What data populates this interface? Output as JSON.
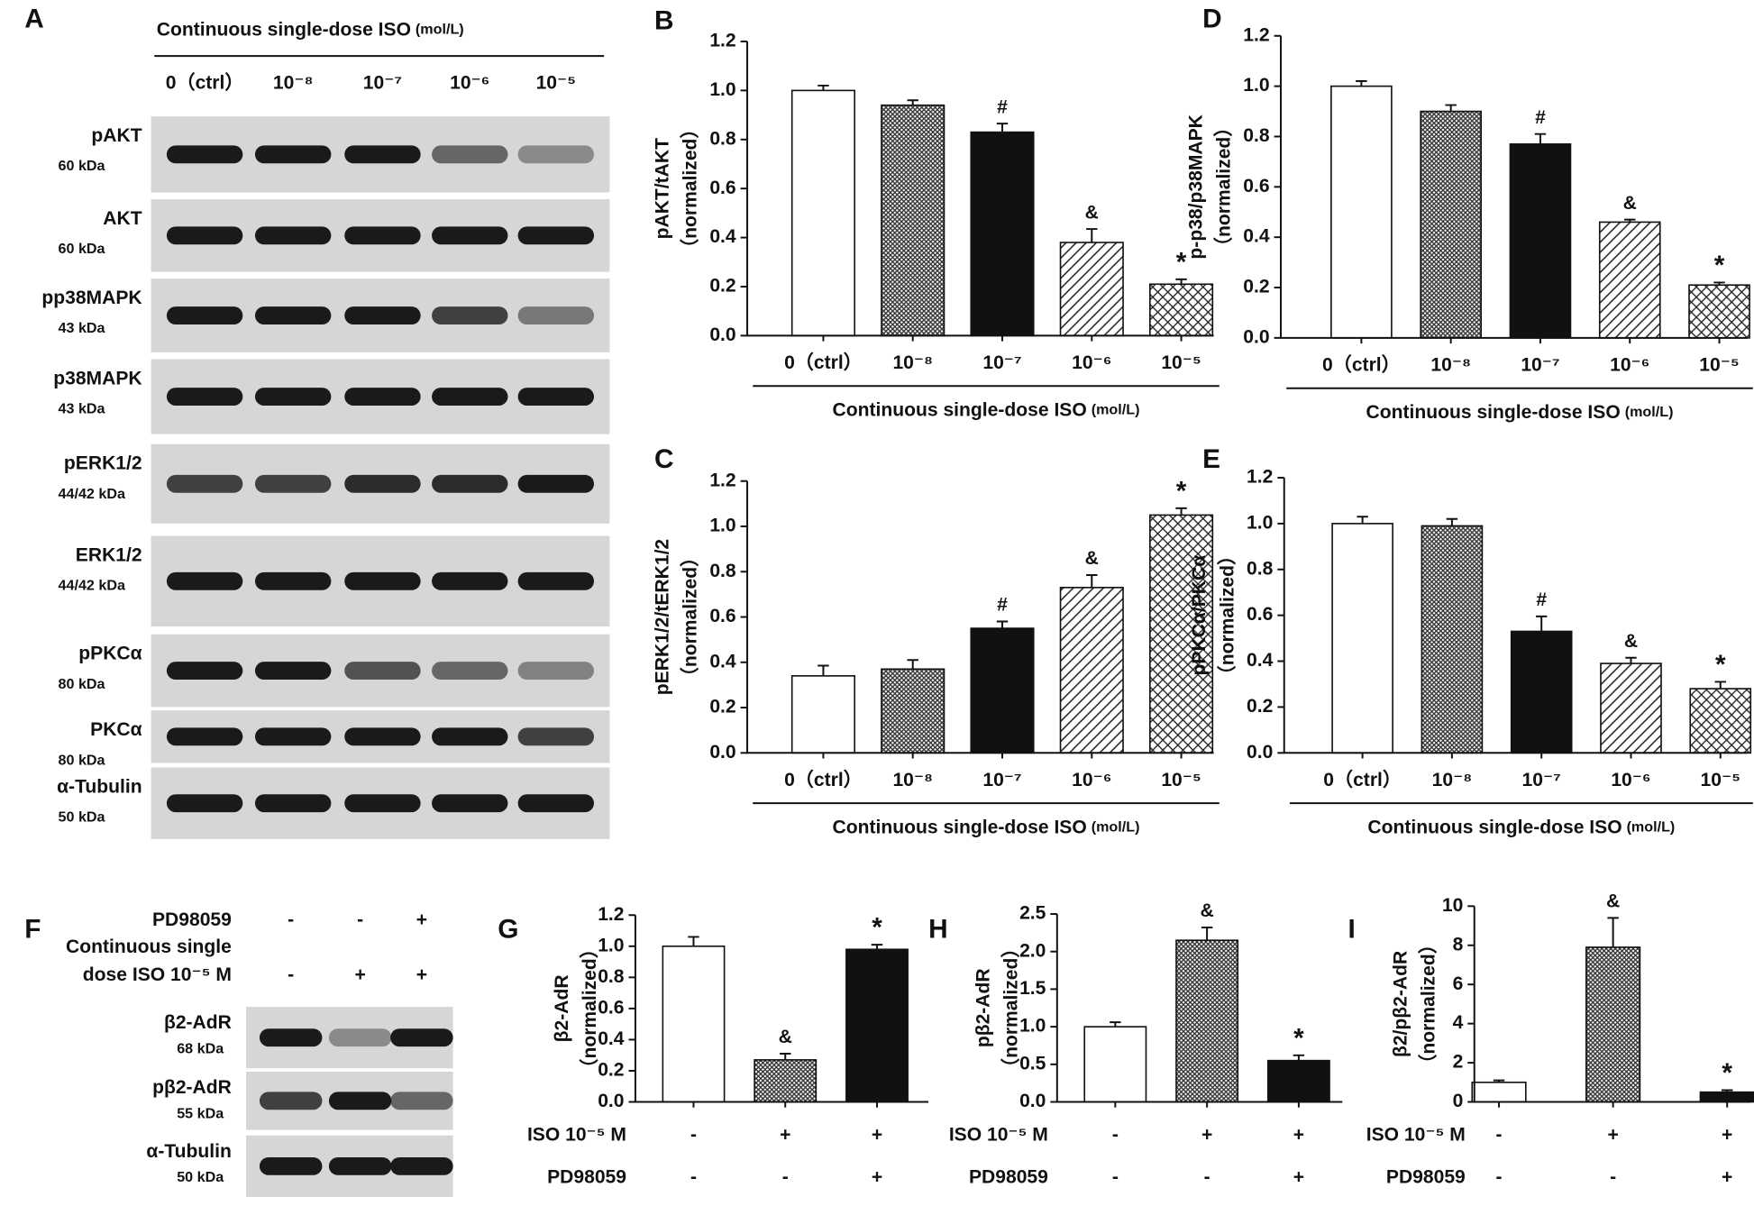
{
  "blots": {
    "A": {
      "panel": "A",
      "title": "Continuous single-dose ISO",
      "title_unit": "(mol/L)",
      "lanes": [
        "0（ctrl）",
        "10⁻⁸",
        "10⁻⁷",
        "10⁻⁶",
        "10⁻⁵"
      ],
      "bands": [
        {
          "name": "pAKT",
          "size": "60 kDa"
        },
        {
          "name": "AKT",
          "size": "60 kDa"
        },
        {
          "name": "pp38MAPK",
          "size": "43 kDa"
        },
        {
          "name": "p38MAPK",
          "size": "43 kDa"
        },
        {
          "name": "pERK1/2",
          "size": "44/42 kDa"
        },
        {
          "name": "ERK1/2",
          "size": "44/42 kDa"
        },
        {
          "name": "pPKCα",
          "size": "80 kDa"
        },
        {
          "name": "PKCα",
          "size": "80 kDa"
        },
        {
          "name": "α-Tubulin",
          "size": "50 kDa"
        }
      ]
    },
    "F": {
      "panel": "F",
      "rows": [
        {
          "label": [
            "PD98059"
          ],
          "signs": [
            "-",
            "-",
            "+"
          ]
        },
        {
          "label": [
            "Continuous single",
            "dose ISO 10⁻⁵ M"
          ],
          "signs": [
            "-",
            "+",
            "+"
          ]
        }
      ],
      "bands": [
        {
          "name": "β2-AdR",
          "size": "68 kDa"
        },
        {
          "name": "pβ2-AdR",
          "size": "55 kDa"
        },
        {
          "name": "α-Tubulin",
          "size": "50 kDa"
        }
      ]
    }
  },
  "chart_data": [
    {
      "type": "bar",
      "panel": "B",
      "ylabel": [
        "pAKT/tAKT",
        "（normalized）"
      ],
      "xlabel": "Continuous single-dose ISO",
      "xlabel_unit": "(mol/L)",
      "categories": [
        "0（ctrl）",
        "10⁻⁸",
        "10⁻⁷",
        "10⁻⁶",
        "10⁻⁵"
      ],
      "values": [
        1.0,
        0.94,
        0.83,
        0.38,
        0.21
      ],
      "errors": [
        0.02,
        0.02,
        0.035,
        0.055,
        0.02
      ],
      "annotations": [
        null,
        null,
        "#",
        "&",
        "*"
      ],
      "fills": [
        "white",
        "dots",
        "black",
        "diagonal",
        "crosshatch"
      ],
      "ylim": [
        0,
        1.2
      ],
      "yticks": [
        {
          "value": 0,
          "label": "0.0"
        },
        0.2,
        0.4,
        0.6,
        0.8,
        {
          "value": 1,
          "label": "1.0"
        },
        1.2
      ]
    },
    {
      "type": "bar",
      "panel": "C",
      "ylabel": [
        "pERK1/2/tERK1/2",
        "（normalized）"
      ],
      "xlabel": "Continuous single-dose ISO",
      "xlabel_unit": "(mol/L)",
      "categories": [
        "0（ctrl）",
        "10⁻⁸",
        "10⁻⁷",
        "10⁻⁶",
        "10⁻⁵"
      ],
      "values": [
        0.34,
        0.37,
        0.55,
        0.73,
        1.05
      ],
      "errors": [
        0.045,
        0.04,
        0.03,
        0.055,
        0.03
      ],
      "annotations": [
        null,
        null,
        "#",
        "&",
        "*"
      ],
      "fills": [
        "white",
        "dots",
        "black",
        "diagonal",
        "crosshatch"
      ],
      "ylim": [
        0,
        1.2
      ],
      "yticks": [
        {
          "value": 0,
          "label": "0.0"
        },
        0.2,
        0.4,
        0.6,
        0.8,
        {
          "value": 1,
          "label": "1.0"
        },
        1.2
      ]
    },
    {
      "type": "bar",
      "panel": "D",
      "ylabel": [
        "p-p38/p38MAPK",
        "（normalized）"
      ],
      "xlabel": "Continuous single-dose ISO",
      "xlabel_unit": "(mol/L)",
      "categories": [
        "0（ctrl）",
        "10⁻⁸",
        "10⁻⁷",
        "10⁻⁶",
        "10⁻⁵"
      ],
      "values": [
        1.0,
        0.9,
        0.77,
        0.46,
        0.21
      ],
      "errors": [
        0.02,
        0.025,
        0.04,
        0.01,
        0.01
      ],
      "annotations": [
        null,
        null,
        "#",
        "&",
        "*"
      ],
      "fills": [
        "white",
        "dots",
        "black",
        "diagonal",
        "crosshatch"
      ],
      "ylim": [
        0,
        1.2
      ],
      "yticks": [
        {
          "value": 0,
          "label": "0.0"
        },
        0.2,
        0.4,
        0.6,
        0.8,
        {
          "value": 1,
          "label": "1.0"
        },
        1.2
      ]
    },
    {
      "type": "bar",
      "panel": "E",
      "ylabel": [
        "pPKCα/PKCα",
        "（normalized）"
      ],
      "xlabel": "Continuous single-dose ISO",
      "xlabel_unit": "(mol/L)",
      "categories": [
        "0（ctrl）",
        "10⁻⁸",
        "10⁻⁷",
        "10⁻⁶",
        "10⁻⁵"
      ],
      "values": [
        1.0,
        0.99,
        0.53,
        0.39,
        0.28
      ],
      "errors": [
        0.03,
        0.03,
        0.065,
        0.025,
        0.03
      ],
      "annotations": [
        null,
        null,
        "#",
        "&",
        "*"
      ],
      "fills": [
        "white",
        "dots",
        "black",
        "diagonal",
        "crosshatch"
      ],
      "ylim": [
        0,
        1.2
      ],
      "yticks": [
        {
          "value": 0,
          "label": "0.0"
        },
        0.2,
        0.4,
        0.6,
        0.8,
        {
          "value": 1,
          "label": "1.0"
        },
        1.2
      ]
    },
    {
      "type": "bar",
      "panel": "G",
      "ylabel": [
        "β2-AdR",
        "（normalized）"
      ],
      "rows": [
        {
          "label": "ISO 10⁻⁵ M",
          "signs": [
            "-",
            "+",
            "+"
          ]
        },
        {
          "label": "PD98059",
          "signs": [
            "-",
            "-",
            "+"
          ]
        }
      ],
      "values": [
        1.0,
        0.27,
        0.98
      ],
      "errors": [
        0.06,
        0.04,
        0.03
      ],
      "annotations": [
        null,
        "&",
        "*"
      ],
      "fills": [
        "white",
        "dots",
        "black"
      ],
      "ylim": [
        0,
        1.2
      ],
      "yticks": [
        {
          "value": 0,
          "label": "0.0"
        },
        0.2,
        0.4,
        0.6,
        0.8,
        {
          "value": 1,
          "label": "1.0"
        },
        1.2
      ]
    },
    {
      "type": "bar",
      "panel": "H",
      "ylabel": [
        "pβ2-AdR",
        "（normalized）"
      ],
      "rows": [
        {
          "label": "ISO 10⁻⁵ M",
          "signs": [
            "-",
            "+",
            "+"
          ]
        },
        {
          "label": "PD98059",
          "signs": [
            "-",
            "-",
            "+"
          ]
        }
      ],
      "values": [
        1.0,
        2.15,
        0.55
      ],
      "errors": [
        0.06,
        0.17,
        0.07
      ],
      "annotations": [
        null,
        "&",
        "*"
      ],
      "fills": [
        "white",
        "dots",
        "black"
      ],
      "ylim": [
        0,
        2.5
      ],
      "yticks": [
        {
          "value": 0,
          "label": "0.0"
        },
        0.5,
        {
          "value": 1,
          "label": "1.0"
        },
        1.5,
        {
          "value": 2,
          "label": "2.0"
        },
        2.5
      ]
    },
    {
      "type": "bar",
      "panel": "I",
      "ylabel": [
        "β2/pβ2-AdR",
        "（normalized）"
      ],
      "rows": [
        {
          "label": "ISO 10⁻⁵ M",
          "signs": [
            "-",
            "+",
            "+"
          ]
        },
        {
          "label": "PD98059",
          "signs": [
            "-",
            "-",
            "+"
          ]
        }
      ],
      "values": [
        1.0,
        7.9,
        0.5
      ],
      "errors": [
        0.1,
        1.5,
        0.1
      ],
      "annotations": [
        null,
        "&",
        "*"
      ],
      "fills": [
        "white",
        "dots",
        "black"
      ],
      "ylim": [
        0,
        10
      ],
      "yticks": [
        0,
        2,
        4,
        6,
        8,
        10
      ]
    }
  ]
}
